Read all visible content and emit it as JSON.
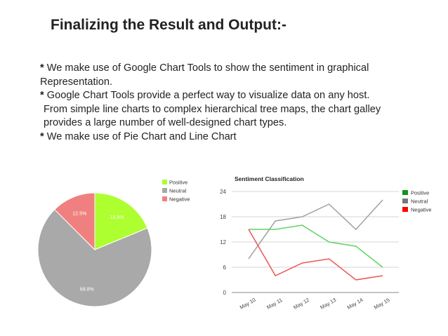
{
  "slide": {
    "title": "Finalizing the Result and Output:-",
    "bullets": [
      {
        "star": "*",
        "text": " We make use of Google Chart Tools to show the sentiment in graphical"
      },
      {
        "star": "",
        "text": "Representation."
      },
      {
        "star": "*",
        "text": " Google Chart Tools provide a perfect way to visualize data on any host."
      },
      {
        "star": "",
        "text": " From simple line charts to complex hierarchical tree maps, the chart galley"
      },
      {
        "star": "",
        "text": " provides a large number of well-designed chart types."
      },
      {
        "star": "*",
        "text": " We make use of Pie Chart and Line Chart"
      }
    ]
  },
  "chart_data": [
    {
      "type": "pie",
      "title": "",
      "categories": [
        "Positive",
        "Neutral",
        "Negative"
      ],
      "values": [
        18.8,
        68.8,
        12.5
      ],
      "labels": [
        "18.8%",
        "68.8%",
        "12.5%"
      ],
      "colors": [
        "#adff2f",
        "#a9a9a9",
        "#f08080"
      ],
      "legend": "right"
    },
    {
      "type": "line",
      "title": "Sentiment Classification",
      "categories": [
        "May 10",
        "May 11",
        "May 12",
        "May 13",
        "May 14",
        "May 15"
      ],
      "series": [
        {
          "name": "Positive",
          "values": [
            15,
            15,
            16,
            12,
            11,
            6
          ],
          "color": "#5fd35f"
        },
        {
          "name": "Neutral",
          "values": [
            8,
            17,
            18,
            21,
            15,
            22
          ],
          "color": "#a0a0a0"
        },
        {
          "name": "Negative",
          "values": [
            15,
            4,
            7,
            8,
            3,
            4
          ],
          "color": "#ee5555"
        }
      ],
      "legend_colors": [
        "#109618",
        "#777777",
        "#ff0000"
      ],
      "yticks": [
        0,
        6,
        12,
        18,
        24
      ],
      "ylim": [
        0,
        24
      ],
      "grid": true,
      "legend": "right"
    }
  ]
}
